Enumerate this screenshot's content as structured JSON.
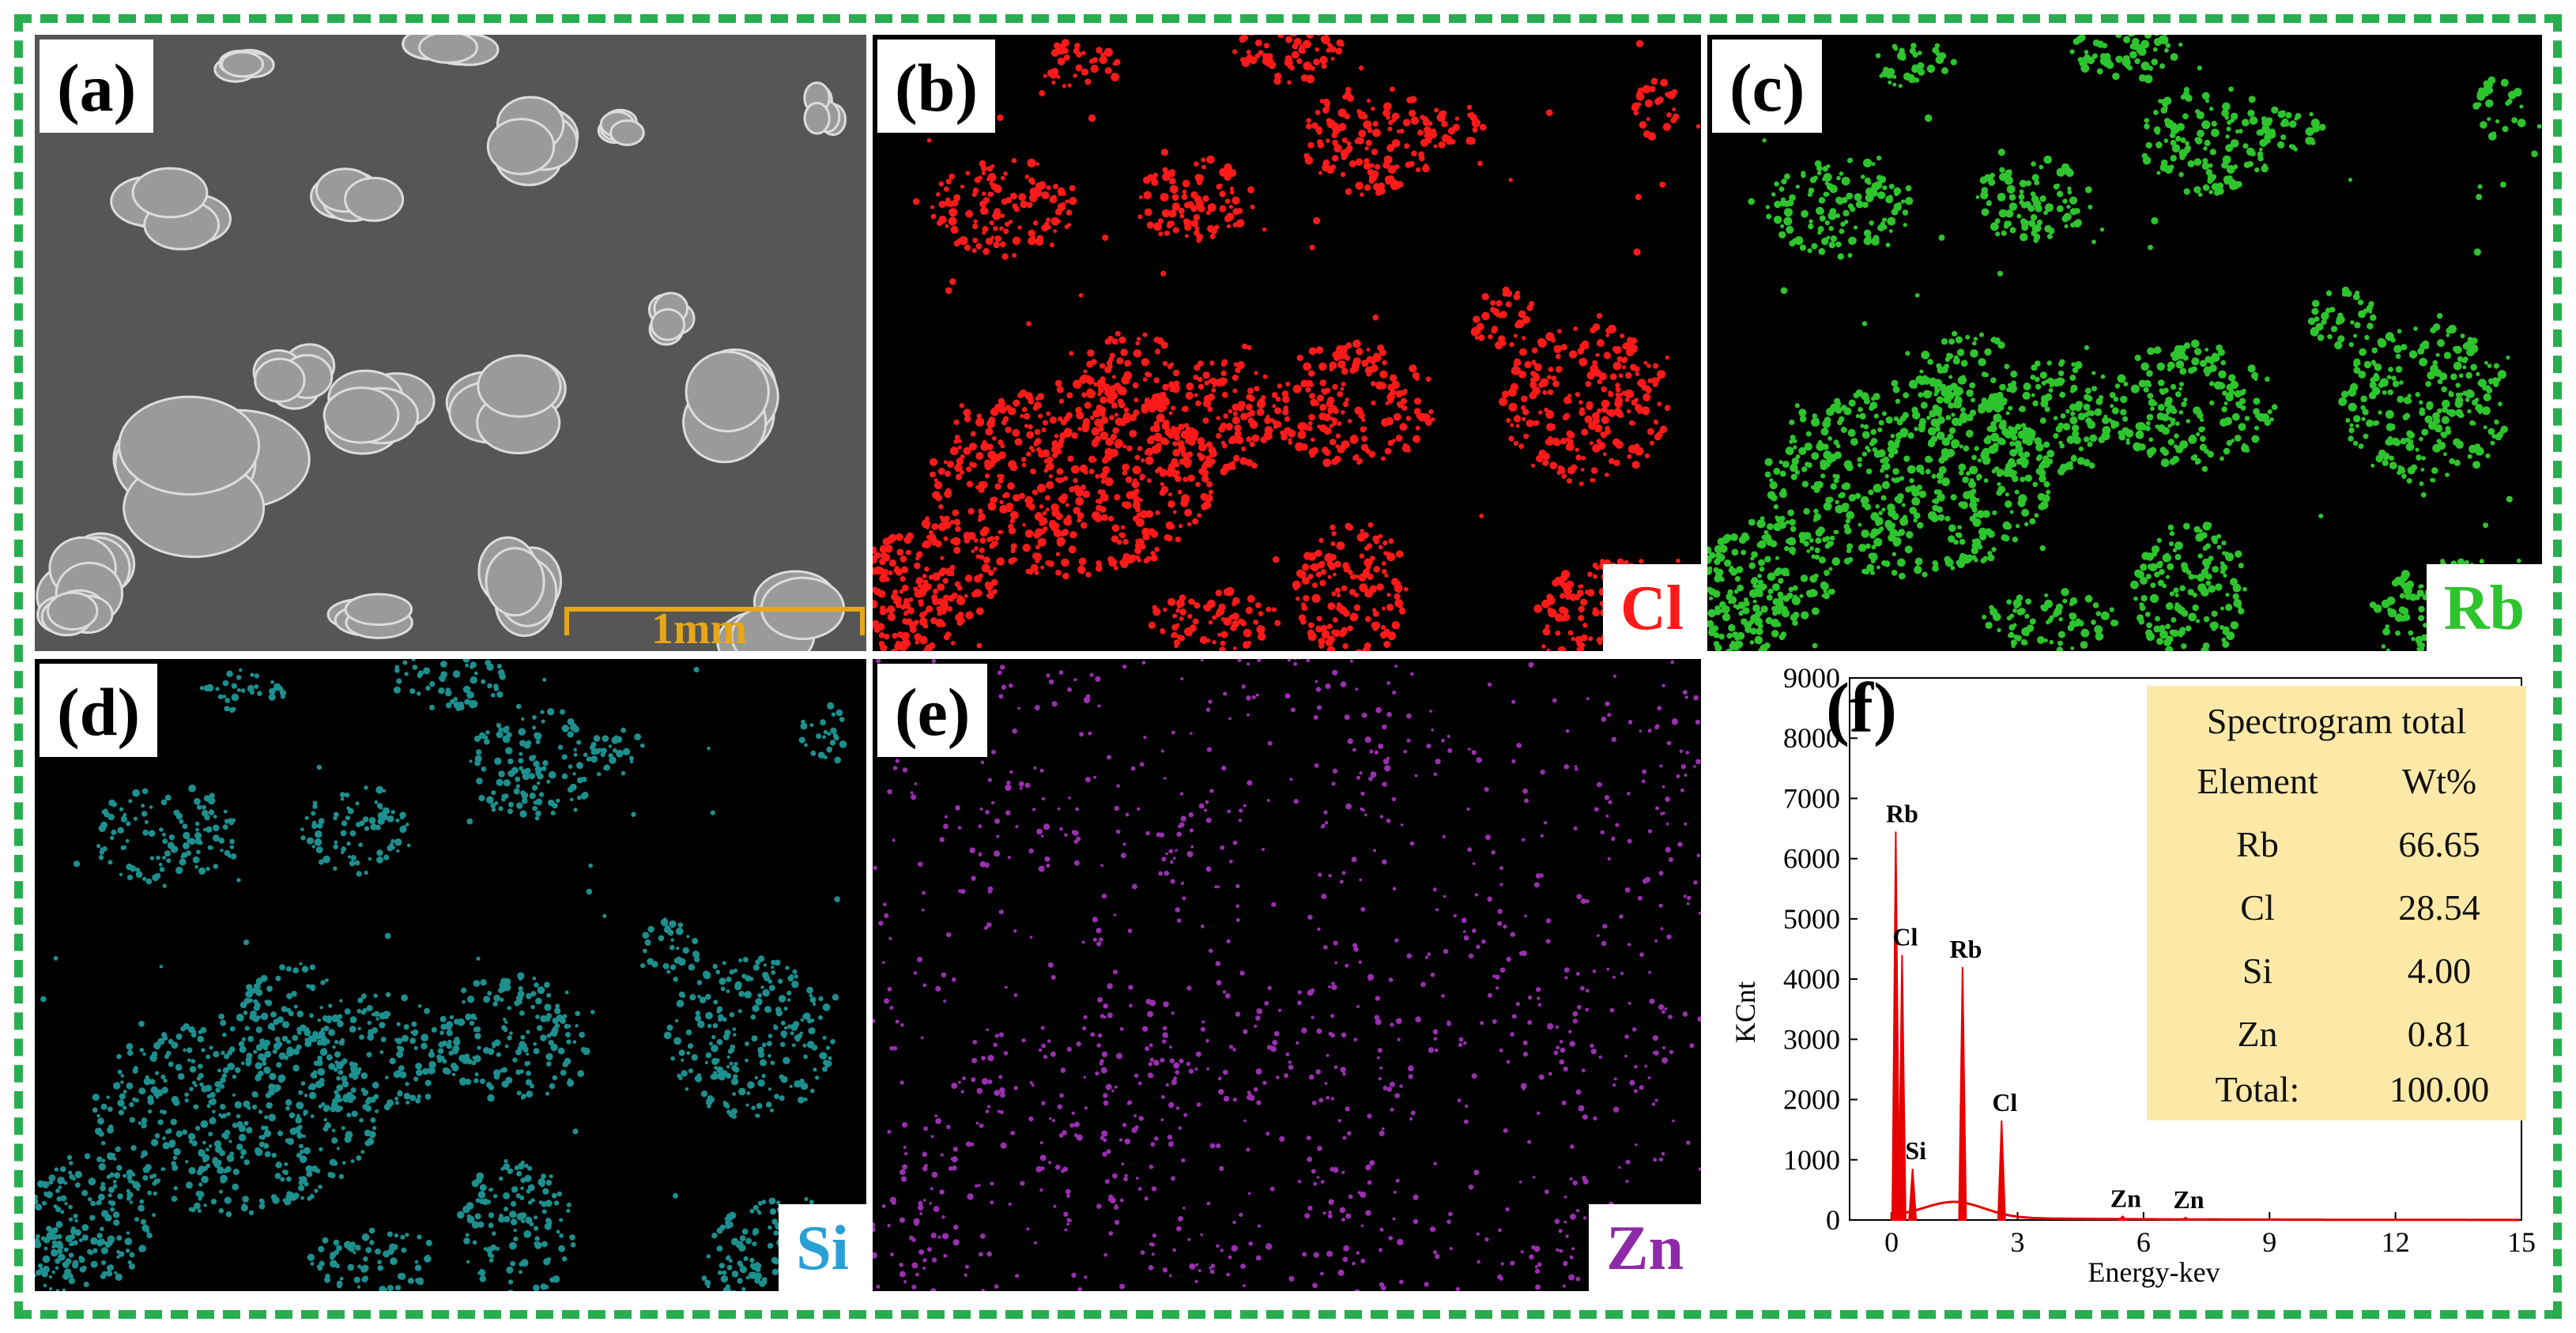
{
  "panels": {
    "a": {
      "label": "(a)",
      "scale_bar": "1mm",
      "scale_color": "#e6a615"
    },
    "b": {
      "label": "(b)",
      "element": "Cl",
      "color": "#ff1a1a"
    },
    "c": {
      "label": "(c)",
      "element": "Rb",
      "color": "#2ec42e"
    },
    "d": {
      "label": "(d)",
      "element": "Si",
      "color": "#2a9fd6"
    },
    "e": {
      "label": "(e)",
      "element": "Zn",
      "color": "#8e2aa8"
    },
    "f": {
      "label": "(f)"
    }
  },
  "frame_color": "#27ae4f",
  "table": {
    "title": "Spectrogram total",
    "headers": [
      "Element",
      "Wt%"
    ],
    "rows": [
      [
        "Rb",
        "66.65"
      ],
      [
        "Cl",
        "28.54"
      ],
      [
        "Si",
        "4.00"
      ],
      [
        "Zn",
        "0.81"
      ],
      [
        "Total:",
        "100.00"
      ]
    ]
  },
  "chart_data": {
    "type": "line",
    "title": "",
    "xlabel": "Energy-kev",
    "ylabel": "KCnt",
    "xlim": [
      -1,
      15
    ],
    "ylim": [
      0,
      9000
    ],
    "xticks": [
      0,
      3,
      6,
      9,
      12,
      15
    ],
    "yticks": [
      0,
      1000,
      2000,
      3000,
      4000,
      5000,
      6000,
      7000,
      8000,
      9000
    ],
    "color": "#e60000",
    "peaks": [
      {
        "label": "Rb",
        "x": 0.1,
        "y": 6450
      },
      {
        "label": "Cl",
        "x": 0.25,
        "y": 4400
      },
      {
        "label": "Si",
        "x": 0.5,
        "y": 850
      },
      {
        "label": "Rb",
        "x": 1.69,
        "y": 4200
      },
      {
        "label": "Cl",
        "x": 2.62,
        "y": 1650
      },
      {
        "label": "Zn",
        "x": 5.5,
        "y": 60
      },
      {
        "label": "Zn",
        "x": 7.0,
        "y": 40
      }
    ]
  }
}
